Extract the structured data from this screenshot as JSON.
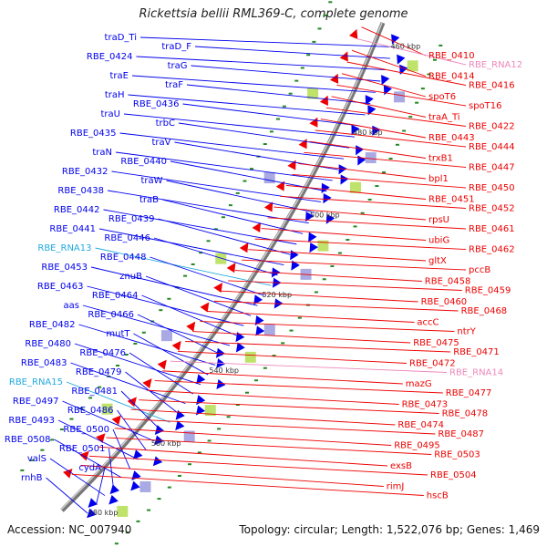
{
  "title": "Rickettsia bellii RML369-C, complete genome",
  "accession": "Accession: NC_007940",
  "summary": "Topology: circular; Length: 1,522,076 bp; Genes: 1,469",
  "colors": {
    "forward": "#0000ee",
    "reverse": "#ee0000",
    "rna_forward": "#22aadd",
    "rna_reverse": "#ee88bb",
    "backbone": "#777777",
    "dots": "#228822"
  },
  "kbp_marks": [
    "460 kbp",
    "480 kbp",
    "500 kbp",
    "520 kbp",
    "540 kbp",
    "560 kbp",
    "580 kbp"
  ],
  "left_labels": [
    "traD_Ti",
    "traD_F",
    "RBE_0424",
    "traG",
    "traE",
    "traF",
    "traH",
    "RBE_0436",
    "traU",
    "trbC",
    "RBE_0435",
    "traV",
    "traN",
    "RBE_0440",
    "RBE_0432",
    "traW",
    "RBE_0438",
    "traB",
    "RBE_0442",
    "RBE_0439",
    "RBE_0441",
    "RBE_0446",
    "RBE_RNA13",
    "RBE_0448",
    "RBE_0453",
    "znuB",
    "RBE_0463",
    "RBE_0464",
    "aas",
    "RBE_0466",
    "RBE_0482",
    "mutT",
    "RBE_0480",
    "RBE_0476",
    "RBE_0483",
    "RBE_0479",
    "RBE_RNA15",
    "RBE_0481",
    "RBE_0497",
    "RBE_0486",
    "RBE_0493",
    "RBE_0500",
    "RBE_0508",
    "RBE_0501",
    "valS",
    "cydA",
    "rnhB"
  ],
  "right_labels": [
    "RBE_0410",
    "RBE_RNA12",
    "RBE_0414",
    "RBE_0416",
    "spoT6",
    "spoT16",
    "traA_Ti",
    "RBE_0422",
    "RBE_0443",
    "RBE_0444",
    "trxB1",
    "RBE_0447",
    "bpl1",
    "RBE_0450",
    "RBE_0451",
    "RBE_0452",
    "rpsU",
    "RBE_0461",
    "ubiG",
    "RBE_0462",
    "gltX",
    "pccB",
    "RBE_0458",
    "RBE_0459",
    "RBE_0460",
    "RBE_0468",
    "accC",
    "ntrY",
    "RBE_0475",
    "RBE_0471",
    "RBE_0472",
    "RBE_RNA14",
    "mazG",
    "RBE_0477",
    "RBE_0473",
    "RBE_0478",
    "RBE_0474",
    "RBE_0487",
    "RBE_0495",
    "RBE_0503",
    "exsB",
    "RBE_0504",
    "rimJ",
    "hscB"
  ]
}
